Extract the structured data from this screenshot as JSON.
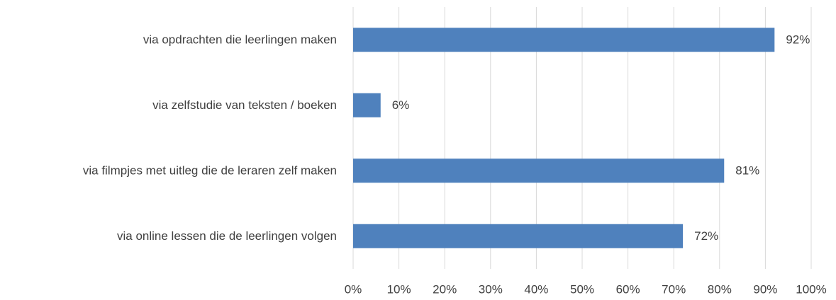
{
  "chart_data": {
    "type": "bar",
    "orientation": "horizontal",
    "categories": [
      "via opdrachten die leerlingen maken",
      "via zelfstudie van teksten / boeken",
      "via filmpjes met uitleg die de leraren zelf maken",
      "via online lessen die de leerlingen volgen"
    ],
    "values": [
      92,
      6,
      81,
      72
    ],
    "value_labels": [
      "92%",
      "6%",
      "81%",
      "72%"
    ],
    "color": "#4f81bd",
    "xlim": [
      0,
      100
    ],
    "xticks": [
      {
        "value": 0,
        "label": "0%"
      },
      {
        "value": 10,
        "label": "10%"
      },
      {
        "value": 20,
        "label": "20%"
      },
      {
        "value": 30,
        "label": "30%"
      },
      {
        "value": 40,
        "label": "40%"
      },
      {
        "value": 50,
        "label": "50%"
      },
      {
        "value": 60,
        "label": "60%"
      },
      {
        "value": 70,
        "label": "70%"
      },
      {
        "value": 80,
        "label": "80%"
      },
      {
        "value": 90,
        "label": "90%"
      },
      {
        "value": 100,
        "label": "100%"
      }
    ],
    "grid": true
  }
}
